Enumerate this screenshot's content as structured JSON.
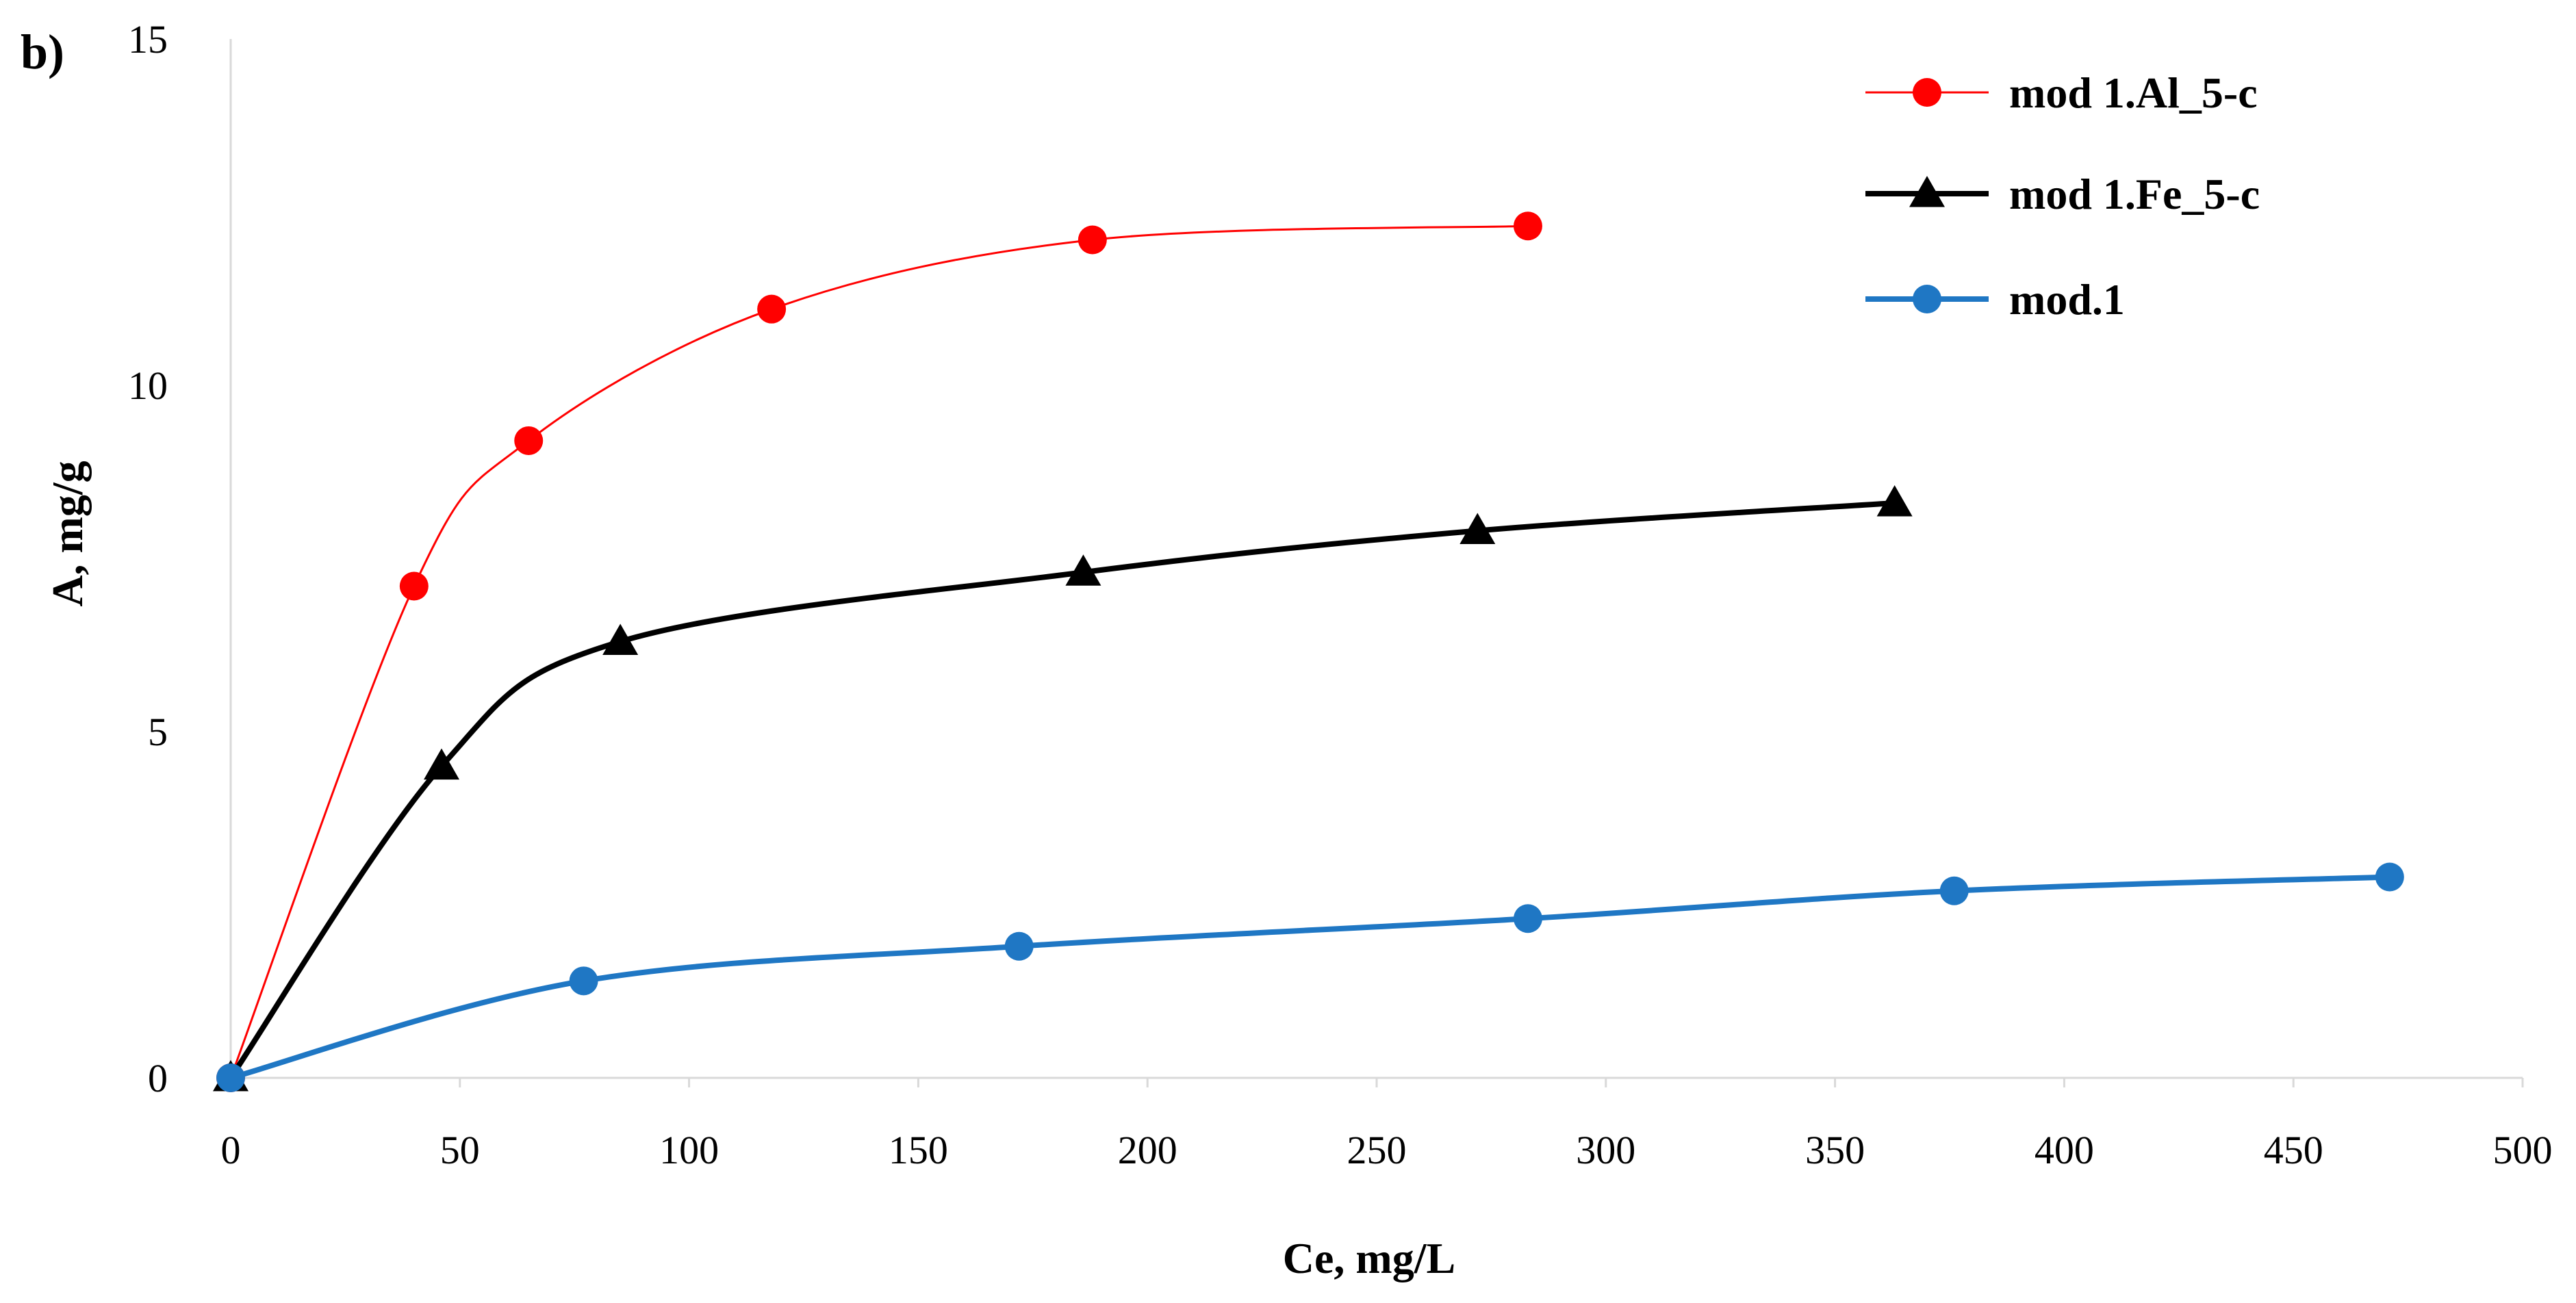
{
  "chart_data": {
    "type": "line",
    "panel_label": "b)",
    "xlabel": "Ce,  mg/L",
    "ylabel": "A,  mg/g",
    "xlim": [
      0,
      500
    ],
    "ylim": [
      0,
      15
    ],
    "xticks": [
      0,
      50,
      100,
      150,
      200,
      250,
      300,
      350,
      400,
      450,
      500
    ],
    "yticks": [
      0,
      5,
      10,
      15
    ],
    "grid": false,
    "legend_position": "top-right",
    "series": [
      {
        "name": "mod 1.Al_5-c",
        "color": "#ff0000",
        "marker": "circle",
        "points": [
          [
            0,
            0
          ],
          [
            40,
            7.1
          ],
          [
            65,
            9.2
          ],
          [
            118,
            11.1
          ],
          [
            188,
            12.1
          ],
          [
            283,
            12.3
          ]
        ]
      },
      {
        "name": "mod 1.Fe_5-c",
        "color": "#000000",
        "marker": "triangle",
        "points": [
          [
            0,
            0
          ],
          [
            46,
            4.5
          ],
          [
            85,
            6.3
          ],
          [
            186,
            7.3
          ],
          [
            272,
            7.9
          ],
          [
            363,
            8.3
          ]
        ]
      },
      {
        "name": "mod.1",
        "color": "#1f77c4",
        "marker": "circle",
        "points": [
          [
            0,
            0
          ],
          [
            77,
            1.4
          ],
          [
            172,
            1.9
          ],
          [
            283,
            2.3
          ],
          [
            376,
            2.7
          ],
          [
            471,
            2.9
          ]
        ]
      }
    ]
  }
}
